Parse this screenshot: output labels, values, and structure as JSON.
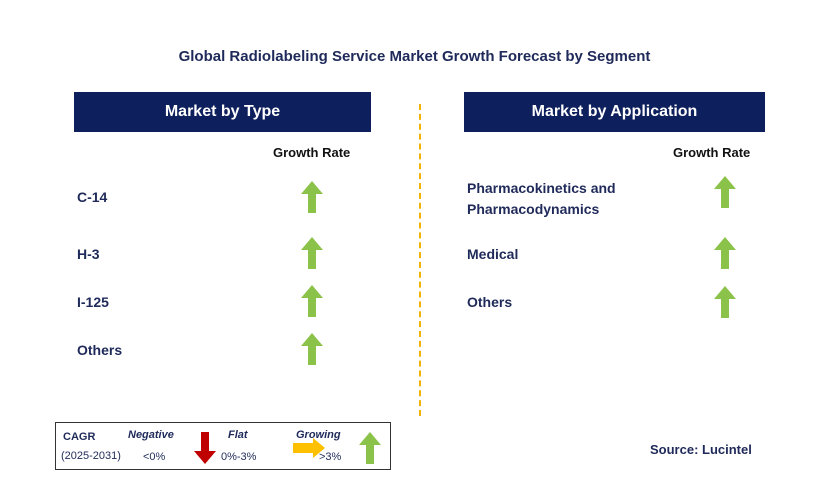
{
  "title": "Global Radiolabeling Service Market Growth Forecast by Segment",
  "left_panel": {
    "header": "Market by Type",
    "growth_rate_label": "Growth Rate",
    "items": [
      {
        "label": "C-14",
        "trend": "growing"
      },
      {
        "label": "H-3",
        "trend": "growing"
      },
      {
        "label": "I-125",
        "trend": "growing"
      },
      {
        "label": "Others",
        "trend": "growing"
      }
    ]
  },
  "right_panel": {
    "header": "Market by Application",
    "growth_rate_label": "Growth Rate",
    "items": [
      {
        "label_line1": "Pharmacokinetics and",
        "label_line2": "Pharmacodynamics",
        "trend": "growing"
      },
      {
        "label_line1": "Medical",
        "label_line2": "",
        "trend": "growing"
      },
      {
        "label_line1": "Others",
        "label_line2": "",
        "trend": "growing"
      }
    ]
  },
  "legend": {
    "cagr_label": "CAGR",
    "period": "(2025-2031)",
    "negative_label": "Negative",
    "negative_range": "<0%",
    "flat_label": "Flat",
    "flat_range": "0%-3%",
    "growing_label": "Growing",
    "growing_range": ">3%"
  },
  "source": "Source: Lucintel",
  "colors": {
    "header_bg": "#0d1f5c",
    "growing": "#8bc34a",
    "negative": "#c00000",
    "flat": "#ffc000",
    "divider": "#f2b300"
  }
}
